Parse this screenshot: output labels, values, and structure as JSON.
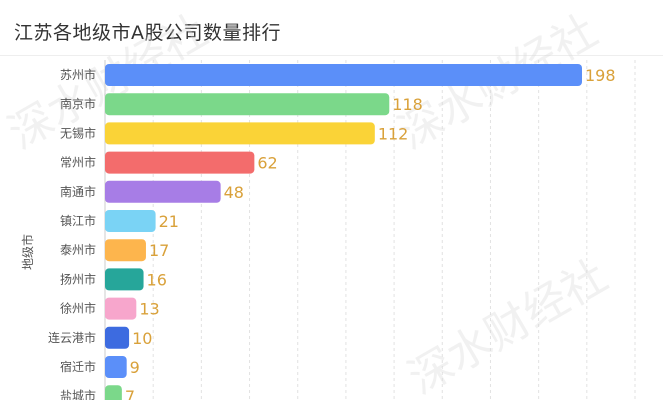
{
  "chart_data": {
    "type": "bar",
    "orientation": "horizontal",
    "title": "江苏各地级市A股公司数量排行",
    "ylabel": "地级市",
    "xlabel": "",
    "categories": [
      "苏州市",
      "南京市",
      "无锡市",
      "常州市",
      "南通市",
      "镇江市",
      "泰州市",
      "扬州市",
      "徐州市",
      "连云港市",
      "宿迁市",
      "盐城市"
    ],
    "values": [
      198,
      118,
      112,
      62,
      48,
      21,
      17,
      16,
      13,
      10,
      9,
      7
    ],
    "xlim": [
      0,
      220
    ],
    "grid": true,
    "colors": [
      "#5b8ff9",
      "#7bd88a",
      "#fad337",
      "#f36c6c",
      "#a77de6",
      "#7ad3f5",
      "#fdb54d",
      "#26a69a",
      "#f7a6cc",
      "#3d6be0",
      "#5b8ff9",
      "#7bd88a"
    ],
    "value_label_color": "#d9a13a"
  },
  "watermark": "深水财经社"
}
